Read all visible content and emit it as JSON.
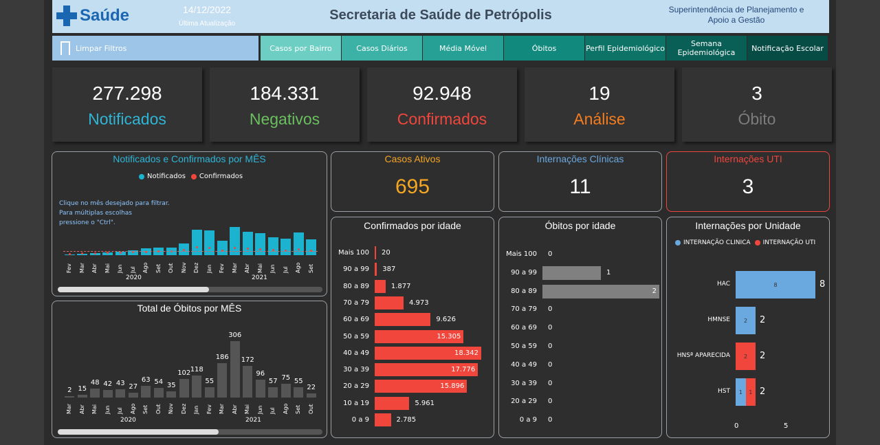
{
  "header": {
    "logo_text": "Saúde",
    "date": "14/12/2022",
    "update_label": "Última Atualização",
    "title": "Secretaria de Saúde de Petrópolis",
    "subtitle_line1": "Superintendência de Planejamento e",
    "subtitle_line2": "Apoio a Gestão"
  },
  "nav": {
    "clear_filters": "Limpar Filtros",
    "tabs": [
      {
        "label": "Casos por Bairro",
        "color": "#6dcfc3"
      },
      {
        "label": "Casos Diários",
        "color": "#3cb2a7"
      },
      {
        "label": "Média Móvel",
        "color": "#26a094"
      },
      {
        "label": "Óbitos",
        "color": "#12897d"
      },
      {
        "label": "Perfil Epidemiológico",
        "color": "#0c7366"
      },
      {
        "label": "Semana Epidemiológica",
        "color": "#095f55"
      },
      {
        "label": "Notificação Escolar",
        "color": "#064c44"
      }
    ]
  },
  "kpis": [
    {
      "value": "277.298",
      "label": "Notificados",
      "color": "#2fb5d6"
    },
    {
      "value": "184.331",
      "label": "Negativos",
      "color": "#6abf5e"
    },
    {
      "value": "92.948",
      "label": "Confirmados",
      "color": "#f0463c"
    },
    {
      "value": "19",
      "label": "Análise",
      "color": "#f57c1f"
    },
    {
      "value": "3",
      "label": "Óbito",
      "color": "#7c7c7c"
    }
  ],
  "monthly_cases": {
    "title": "Notificados e Confirmados por MÊS",
    "legend_notified": "Notificados",
    "legend_confirmed": "Confirmados",
    "notified_color": "#1bb3cf",
    "confirmed_color": "#f0463c",
    "hint_line1": "Clique no mês desejado para filtrar.",
    "hint_line2": "Para múltiplas escolhas",
    "hint_line3": "pressione o \"Ctrl\".",
    "months": [
      "Fev",
      "Mar",
      "Abr",
      "Mai",
      "Jun",
      "Jul",
      "Ago",
      "Set",
      "Out",
      "Nov",
      "Dez",
      "Jan",
      "Fev",
      "Mar",
      "Abr",
      "Mai",
      "Jun",
      "Jul",
      "Ago",
      "Set"
    ],
    "notified_rel": [
      0.02,
      0.04,
      0.06,
      0.08,
      0.1,
      0.14,
      0.2,
      0.22,
      0.22,
      0.32,
      0.72,
      0.7,
      0.4,
      0.78,
      0.66,
      0.62,
      0.5,
      0.46,
      0.64,
      0.44
    ],
    "confirmed_rel": [
      0.01,
      0.02,
      0.04,
      0.06,
      0.08,
      0.1,
      0.12,
      0.14,
      0.14,
      0.2,
      0.34,
      0.32,
      0.18,
      0.32,
      0.28,
      0.26,
      0.2,
      0.18,
      0.26,
      0.18
    ],
    "year1": "2020",
    "year2": "2021"
  },
  "monthly_deaths": {
    "title": "Total de Óbitos por MÊS",
    "months": [
      "Mar",
      "Abr",
      "Mai",
      "Jun",
      "Jul",
      "Ago",
      "Set",
      "Out",
      "Nov",
      "Dez",
      "Jan",
      "Fev",
      "Mar",
      "Abr",
      "Mai",
      "Jun",
      "Jul",
      "Ago",
      "Set",
      "Out"
    ],
    "values": [
      2,
      15,
      48,
      42,
      43,
      27,
      63,
      54,
      35,
      102,
      118,
      55,
      186,
      306,
      172,
      96,
      57,
      75,
      55,
      22
    ],
    "year1": "2020",
    "year2": "2021"
  },
  "cards": {
    "active": {
      "title": "Casos Ativos",
      "value": "695",
      "color": "#f5a623"
    },
    "clinical": {
      "title": "Internações Clínicas",
      "value": "11",
      "color": "#6aa8e0"
    },
    "icu": {
      "title": "Internações UTI",
      "value": "3",
      "color": "#f0463c"
    }
  },
  "confirmed_age": {
    "title": "Confirmados por idade",
    "color": "#f0463c",
    "rows": [
      {
        "label": "Mais 100",
        "value": 20,
        "display": "20"
      },
      {
        "label": "90 a 99",
        "value": 387,
        "display": "387"
      },
      {
        "label": "80 a 89",
        "value": 1877,
        "display": "1.877"
      },
      {
        "label": "70 a 79",
        "value": 4973,
        "display": "4.973"
      },
      {
        "label": "60 a 69",
        "value": 9626,
        "display": "9.626"
      },
      {
        "label": "50 a 59",
        "value": 15305,
        "display": "15.305"
      },
      {
        "label": "40 a 49",
        "value": 18342,
        "display": "18.342"
      },
      {
        "label": "30 a 39",
        "value": 17776,
        "display": "17.776"
      },
      {
        "label": "20 a 29",
        "value": 15896,
        "display": "15.896"
      },
      {
        "label": "10 a 19",
        "value": 5961,
        "display": "5.961"
      },
      {
        "label": "0 a 9",
        "value": 2785,
        "display": "2.785"
      }
    ]
  },
  "deaths_age": {
    "title": "Óbitos por idade",
    "color": "#808080",
    "rows": [
      {
        "label": "Mais 100",
        "value": 0,
        "display": "0"
      },
      {
        "label": "90 a 99",
        "value": 1,
        "display": "1"
      },
      {
        "label": "80 a 89",
        "value": 2,
        "display": "2"
      },
      {
        "label": "70 a 79",
        "value": 0,
        "display": "0"
      },
      {
        "label": "60 a 69",
        "value": 0,
        "display": "0"
      },
      {
        "label": "50 a 59",
        "value": 0,
        "display": "0"
      },
      {
        "label": "40 a 49",
        "value": 0,
        "display": "0"
      },
      {
        "label": "30 a 39",
        "value": 0,
        "display": "0"
      },
      {
        "label": "20 a 29",
        "value": 0,
        "display": "0"
      },
      {
        "label": "0 a 9",
        "value": 0,
        "display": "0"
      }
    ]
  },
  "units": {
    "title": "Internações por Unidade",
    "legend_clinical": "INTERNAÇÃO CLINICA",
    "legend_icu": "INTERNAÇÃO UTI",
    "clinical_color": "#6aa8e0",
    "icu_color": "#f0463c",
    "rows": [
      {
        "label": "HAC",
        "clinical": 8,
        "icu": 0,
        "total": "8"
      },
      {
        "label": "HMNSE",
        "clinical": 2,
        "icu": 0,
        "total": "2"
      },
      {
        "label": "HNSª APARECIDA",
        "clinical": 0,
        "icu": 2,
        "total": "2"
      },
      {
        "label": "HST",
        "clinical": 1,
        "icu": 1,
        "total": "2"
      }
    ],
    "axis": [
      "0",
      "5"
    ]
  },
  "chart_data": [
    {
      "type": "bar",
      "title": "Total de Óbitos por MÊS",
      "categories": [
        "Mar",
        "Abr",
        "Mai",
        "Jun",
        "Jul",
        "Ago",
        "Set",
        "Out",
        "Nov",
        "Dez",
        "Jan",
        "Fev",
        "Mar",
        "Abr",
        "Mai",
        "Jun",
        "Jul",
        "Ago",
        "Set",
        "Out"
      ],
      "values": [
        2,
        15,
        48,
        42,
        43,
        27,
        63,
        54,
        35,
        102,
        118,
        55,
        186,
        306,
        172,
        96,
        57,
        75,
        55,
        22
      ]
    },
    {
      "type": "bar",
      "title": "Confirmados por idade",
      "categories": [
        "Mais 100",
        "90 a 99",
        "80 a 89",
        "70 a 79",
        "60 a 69",
        "50 a 59",
        "40 a 49",
        "30 a 39",
        "20 a 29",
        "10 a 19",
        "0 a 9"
      ],
      "values": [
        20,
        387,
        1877,
        4973,
        9626,
        15305,
        18342,
        17776,
        15896,
        5961,
        2785
      ]
    },
    {
      "type": "bar",
      "title": "Óbitos por idade",
      "categories": [
        "Mais 100",
        "90 a 99",
        "80 a 89",
        "70 a 79",
        "60 a 69",
        "50 a 59",
        "40 a 49",
        "30 a 39",
        "20 a 29",
        "0 a 9"
      ],
      "values": [
        0,
        1,
        2,
        0,
        0,
        0,
        0,
        0,
        0,
        0
      ]
    },
    {
      "type": "bar",
      "title": "Internações por Unidade",
      "categories": [
        "HAC",
        "HMNSE",
        "HNSª APARECIDA",
        "HST"
      ],
      "series": [
        {
          "name": "INTERNAÇÃO CLINICA",
          "values": [
            8,
            2,
            0,
            1
          ]
        },
        {
          "name": "INTERNAÇÃO UTI",
          "values": [
            0,
            0,
            2,
            1
          ]
        }
      ]
    }
  ]
}
